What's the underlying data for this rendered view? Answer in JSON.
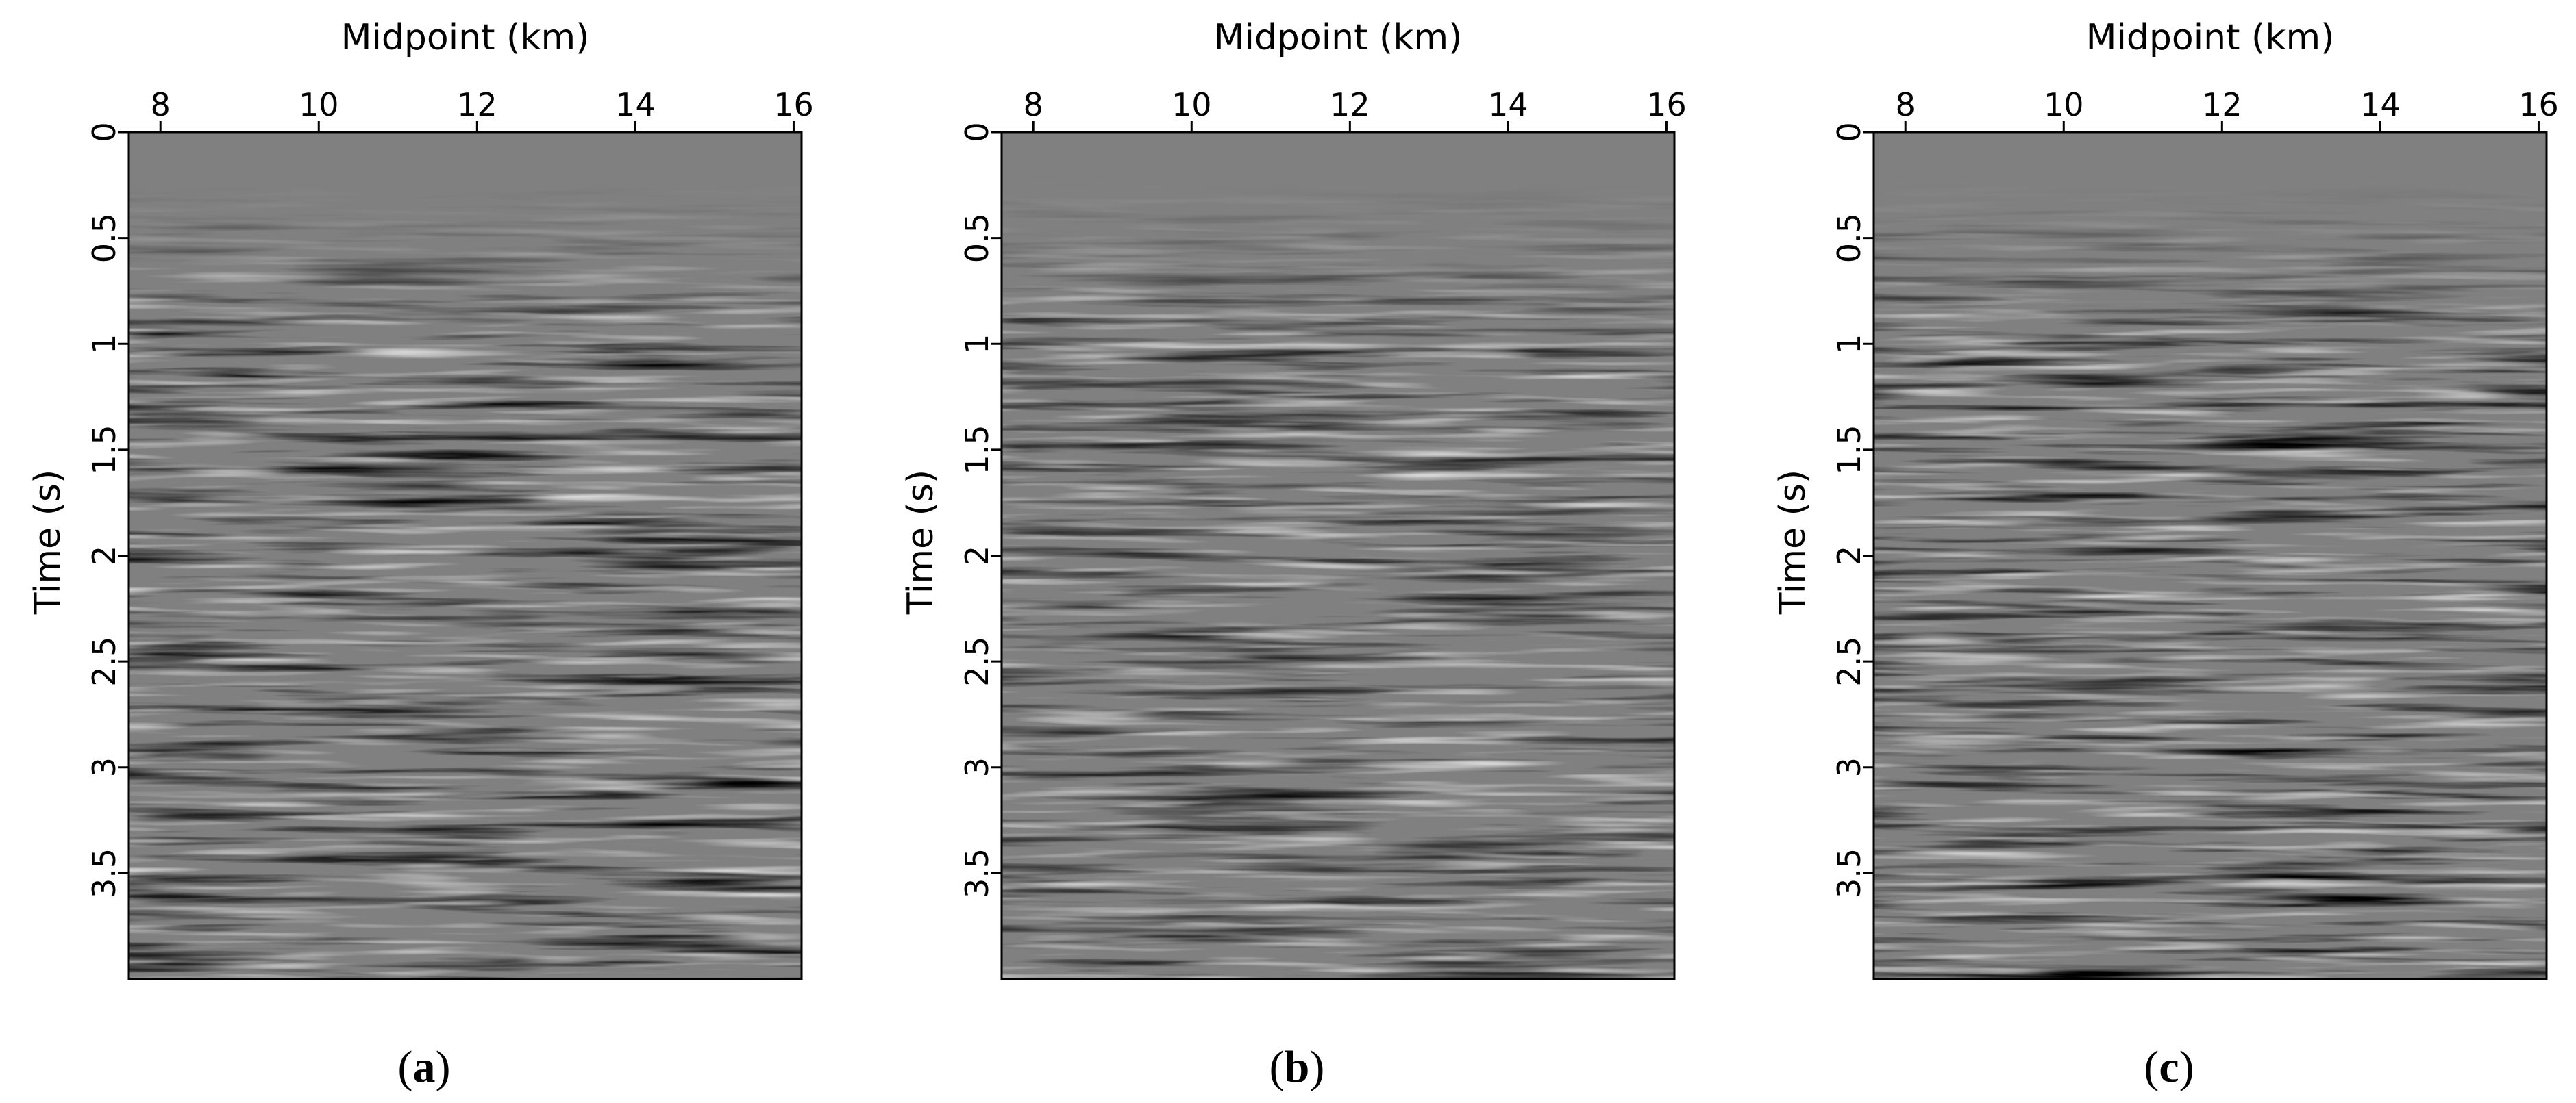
{
  "panels": [
    {
      "id": "a",
      "caption": "a",
      "xlabel": "Midpoint (km)",
      "ylabel": "Time (s)",
      "variant": 0
    },
    {
      "id": "b",
      "caption": "b",
      "xlabel": "Midpoint (km)",
      "ylabel": "Time (s)",
      "variant": 1
    },
    {
      "id": "c",
      "caption": "c",
      "xlabel": "Midpoint (km)",
      "ylabel": "Time (s)",
      "variant": 2
    }
  ],
  "x_axis": {
    "range": [
      7.6,
      16.1
    ],
    "ticks": [
      8,
      10,
      12,
      14,
      16
    ],
    "tick_labels": [
      "8",
      "10",
      "12",
      "14",
      "16"
    ]
  },
  "y_axis": {
    "range": [
      0,
      4.0
    ],
    "ticks": [
      0,
      0.5,
      1,
      1.5,
      2,
      2.5,
      3,
      3.5
    ],
    "tick_labels": [
      "0",
      "0.5",
      "1",
      "1.5",
      "2",
      "2.5",
      "3",
      "3.5"
    ]
  },
  "colors": {
    "background_gray": "#808080",
    "axis": "#000000",
    "page": "#ffffff"
  }
}
